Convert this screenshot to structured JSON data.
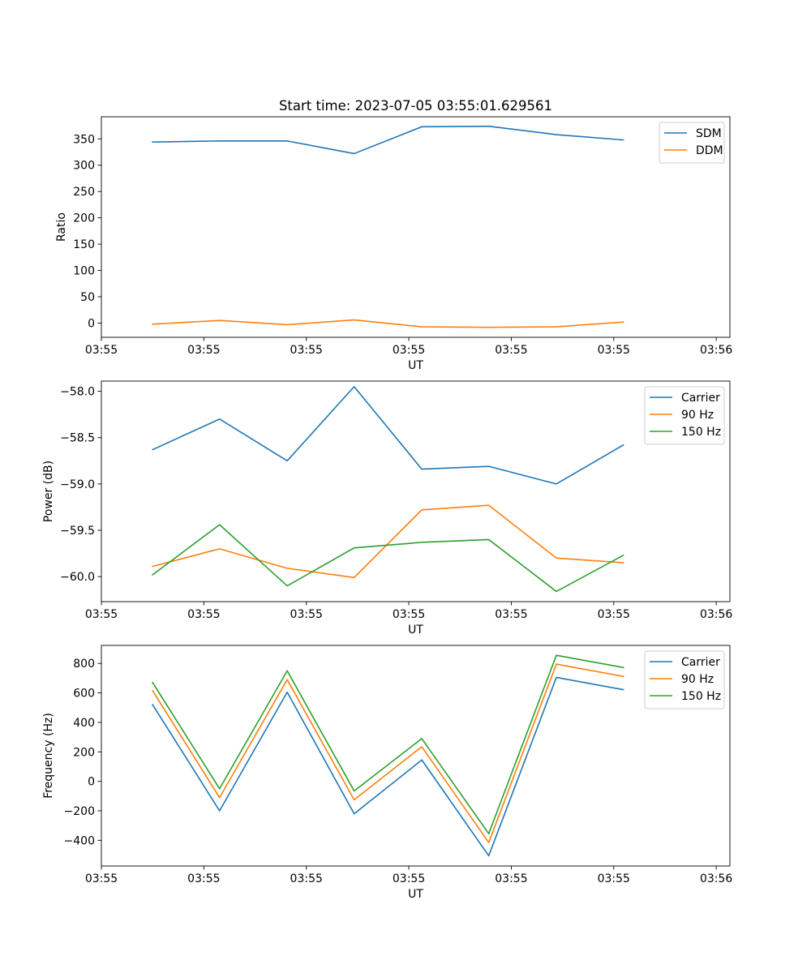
{
  "chart_data": [
    {
      "type": "line",
      "title": "Start time: 2023-07-05 03:55:01.629561",
      "xlabel": "UT",
      "ylabel": "Ratio",
      "xlim": [
        0,
        9.2
      ],
      "ylim": [
        -27,
        392
      ],
      "x_tick_labels": [
        "03:55",
        "03:55",
        "03:55",
        "03:55",
        "03:55",
        "03:55",
        "03:56"
      ],
      "x_tick_values": [
        0,
        1.5,
        3,
        4.5,
        6,
        7.5,
        9
      ],
      "y_ticks": [
        0,
        50,
        100,
        150,
        200,
        250,
        300,
        350
      ],
      "x": [
        0.75,
        1.73,
        2.72,
        3.7,
        4.69,
        5.67,
        6.66,
        7.64
      ],
      "legend_position": "upper right",
      "series": [
        {
          "name": "SDM",
          "color": "#1f77b4",
          "values": [
            344,
            346,
            346,
            322,
            373,
            374,
            358,
            348
          ]
        },
        {
          "name": "DDM",
          "color": "#ff7f0e",
          "values": [
            -2,
            5,
            -3,
            6,
            -7,
            -8,
            -7,
            2
          ]
        }
      ]
    },
    {
      "type": "line",
      "title": "",
      "xlabel": "UT",
      "ylabel": "Power (dB)",
      "xlim": [
        0,
        9.2
      ],
      "ylim": [
        -60.27,
        -57.89
      ],
      "x_tick_labels": [
        "03:55",
        "03:55",
        "03:55",
        "03:55",
        "03:55",
        "03:55",
        "03:56"
      ],
      "x_tick_values": [
        0,
        1.5,
        3,
        4.5,
        6,
        7.5,
        9
      ],
      "y_ticks": [
        -60.0,
        -59.5,
        -59.0,
        -58.5,
        -58.0
      ],
      "y_tick_labels": [
        "−60.0",
        "−59.5",
        "−59.0",
        "−58.5",
        "−58.0"
      ],
      "x": [
        0.75,
        1.73,
        2.72,
        3.7,
        4.69,
        5.67,
        6.66,
        7.64
      ],
      "legend_position": "upper right",
      "series": [
        {
          "name": "Carrier",
          "color": "#1f77b4",
          "values": [
            -58.63,
            -58.3,
            -58.75,
            -57.95,
            -58.84,
            -58.81,
            -59.0,
            -58.58
          ]
        },
        {
          "name": "90 Hz",
          "color": "#ff7f0e",
          "values": [
            -59.89,
            -59.7,
            -59.91,
            -60.01,
            -59.28,
            -59.23,
            -59.8,
            -59.85
          ]
        },
        {
          "name": "150 Hz",
          "color": "#2ca02c",
          "values": [
            -59.98,
            -59.44,
            -60.1,
            -59.69,
            -59.63,
            -59.6,
            -60.16,
            -59.77
          ]
        }
      ]
    },
    {
      "type": "line",
      "title": "",
      "xlabel": "UT",
      "ylabel": "Frequency (Hz)",
      "xlim": [
        0,
        9.2
      ],
      "ylim": [
        -574,
        922
      ],
      "x_tick_labels": [
        "03:55",
        "03:55",
        "03:55",
        "03:55",
        "03:55",
        "03:55",
        "03:56"
      ],
      "x_tick_values": [
        0,
        1.5,
        3,
        4.5,
        6,
        7.5,
        9
      ],
      "y_ticks": [
        -400,
        -200,
        0,
        200,
        400,
        600,
        800
      ],
      "y_tick_labels": [
        "−400",
        "−200",
        "0",
        "200",
        "400",
        "600",
        "800"
      ],
      "x": [
        0.75,
        1.73,
        2.72,
        3.7,
        4.69,
        5.67,
        6.66,
        7.64
      ],
      "legend_position": "upper right",
      "series": [
        {
          "name": "Carrier",
          "color": "#1f77b4",
          "values": [
            520,
            -200,
            605,
            -220,
            145,
            -505,
            705,
            622
          ]
        },
        {
          "name": "90 Hz",
          "color": "#ff7f0e",
          "values": [
            615,
            -110,
            690,
            -125,
            235,
            -415,
            795,
            712
          ]
        },
        {
          "name": "150 Hz",
          "color": "#2ca02c",
          "values": [
            670,
            -50,
            750,
            -65,
            290,
            -355,
            855,
            772
          ]
        }
      ]
    }
  ]
}
